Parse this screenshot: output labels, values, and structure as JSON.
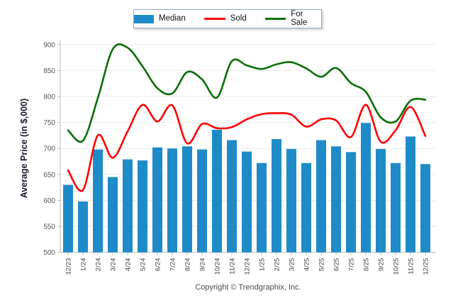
{
  "legend": {
    "items": [
      {
        "label": "Median",
        "type": "bar",
        "color": "#1E8BC8"
      },
      {
        "label": "Sold",
        "type": "line",
        "color": "#FE0000"
      },
      {
        "label": "For Sale",
        "type": "line",
        "color": "#066E06"
      }
    ]
  },
  "footer": {
    "copyright": "Copyright © Trendgraphix, Inc."
  },
  "chart_data": {
    "type": "bar+line combo",
    "title": "",
    "xlabel": "",
    "ylabel": "Average Price (in $,000)",
    "ylim": [
      500,
      900
    ],
    "yticks": [
      500,
      550,
      600,
      650,
      700,
      750,
      800,
      850,
      900
    ],
    "grid": "horizontal",
    "legend_position": "top",
    "categories": [
      "12/23",
      "1/24",
      "2/24",
      "3/24",
      "4/24",
      "5/24",
      "6/24",
      "7/24",
      "8/24",
      "9/24",
      "10/24",
      "11/24",
      "12/24",
      "1/25",
      "2/25",
      "3/25",
      "4/25",
      "5/25",
      "6/25",
      "7/25",
      "8/25",
      "9/25",
      "10/25",
      "11/25",
      "12/25"
    ],
    "series": [
      {
        "name": "Median",
        "type": "bar",
        "color": "#1E8BC8",
        "values": [
          630,
          598,
          698,
          645,
          679,
          677,
          702,
          700,
          704,
          698,
          736,
          716,
          694,
          672,
          718,
          699,
          672,
          716,
          704,
          693,
          749,
          699,
          672,
          723,
          670
        ]
      },
      {
        "name": "Sold",
        "type": "line",
        "color": "#FE0000",
        "values": [
          658,
          620,
          725,
          682,
          733,
          784,
          752,
          783,
          710,
          747,
          739,
          741,
          756,
          766,
          768,
          765,
          742,
          756,
          754,
          722,
          784,
          713,
          735,
          780,
          724
        ]
      },
      {
        "name": "For Sale",
        "type": "line",
        "color": "#066E06",
        "values": [
          735,
          715,
          797,
          891,
          894,
          858,
          816,
          806,
          847,
          833,
          798,
          868,
          860,
          853,
          862,
          866,
          854,
          838,
          855,
          826,
          809,
          760,
          752,
          792,
          794
        ]
      }
    ]
  }
}
